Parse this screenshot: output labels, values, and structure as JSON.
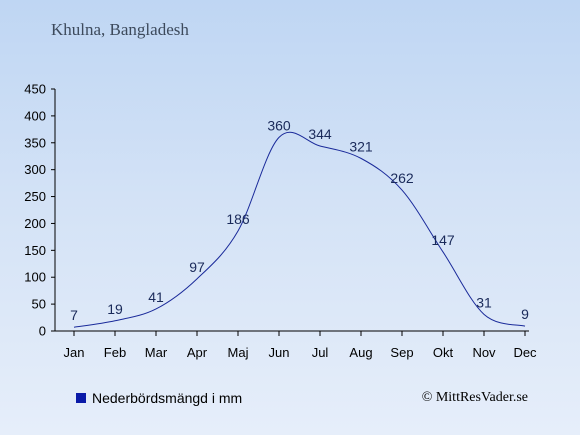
{
  "location_title": "Khulna, Bangladesh",
  "chart_data": {
    "type": "line",
    "categories": [
      "Jan",
      "Feb",
      "Mar",
      "Apr",
      "Maj",
      "Jun",
      "Jul",
      "Aug",
      "Sep",
      "Okt",
      "Nov",
      "Dec"
    ],
    "series": [
      {
        "name": "Nederbördsmängd i mm",
        "values": [
          7,
          19,
          41,
          97,
          186,
          360,
          344,
          321,
          262,
          147,
          31,
          9
        ]
      }
    ],
    "y_ticks": [
      0,
      50,
      100,
      150,
      200,
      250,
      300,
      350,
      400,
      450
    ],
    "ylim": [
      0,
      450
    ],
    "grid": false,
    "legend_position": "bottom-left",
    "line_color": "#1a2a9a",
    "legend_color": "#0a1aa8"
  },
  "legend": {
    "label": "Nederbördsmängd i mm"
  },
  "credit": "© MittResVader.se"
}
